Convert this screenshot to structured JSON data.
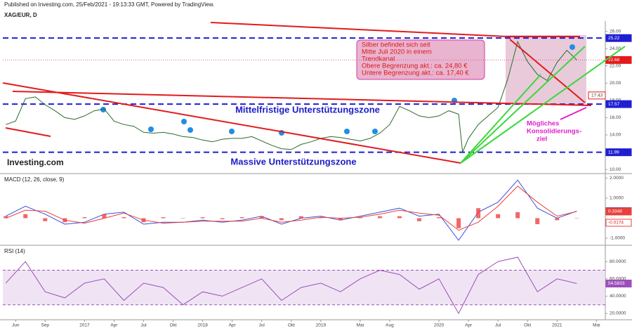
{
  "header": "Published on Investing.com, 25/Feb/2021 - 19:13:33 GMT, Powered by TradingView.",
  "chart_data": [
    {
      "type": "line",
      "title": "XAG/EUR, D",
      "color": "#2b6a2b",
      "x": [
        -1,
        0,
        1,
        2,
        3,
        4,
        5,
        6,
        7,
        8,
        9,
        10,
        11,
        12,
        13,
        14,
        15,
        16,
        17,
        18,
        19,
        20,
        21,
        22,
        23,
        24,
        25,
        26,
        27,
        28,
        29,
        30,
        31,
        32,
        33,
        34,
        35,
        36,
        37,
        38,
        39,
        40,
        41,
        42,
        43,
        44,
        45,
        45.4,
        46,
        47,
        48,
        49,
        50,
        51,
        52,
        53,
        54,
        55,
        56,
        57
      ],
      "values": [
        15.2,
        15.6,
        18.2,
        18.4,
        17.5,
        16.8,
        16.0,
        15.8,
        16.2,
        16.8,
        17.0,
        15.6,
        15.2,
        15.0,
        14.3,
        14.2,
        14.3,
        14.1,
        13.8,
        13.7,
        13.4,
        13.2,
        13.5,
        13.6,
        13.6,
        13.8,
        13.3,
        12.8,
        12.4,
        12.3,
        12.9,
        13.2,
        13.6,
        13.8,
        13.7,
        13.5,
        13.3,
        13.6,
        14.2,
        15.2,
        17.3,
        16.8,
        16.2,
        16.0,
        16.2,
        16.8,
        16.4,
        12.0,
        13.6,
        15.2,
        16.2,
        17.2,
        20.5,
        24.8,
        22.5,
        21.0,
        20.3,
        22.4,
        23.8,
        22.68
      ],
      "xlim": [
        -1.3,
        59.9
      ],
      "ylim": [
        9.6,
        26.7
      ],
      "yticks": [
        {
          "value": 10,
          "label": "10.00"
        },
        {
          "value": 12,
          "label": "12.00"
        },
        {
          "value": 14,
          "label": "14.00"
        },
        {
          "value": 16,
          "label": "16.00"
        },
        {
          "value": 18,
          "label": "18.00"
        },
        {
          "value": 20,
          "label": "20.00"
        },
        {
          "value": 22,
          "label": "22.00"
        },
        {
          "value": 24,
          "label": "24.00"
        },
        {
          "value": 26,
          "label": "26.00"
        }
      ],
      "levels": [
        25.22,
        17.57,
        11.99
      ],
      "level_color": "#1f1fd1",
      "target": 17.43,
      "zones": [
        "Mittelfristige Unterstützungszone",
        "Massive Unterstützungszone"
      ],
      "callout": [
        "Silber befindet sich seit",
        "Mitte Juli 2020 in einem",
        "Trendkanal",
        "Obere Begrenzung akt.: ca. 24,80 €",
        "Untere Begrenzung akt.: ca. 17,40 €"
      ],
      "target_note": [
        "Mögliches",
        "Konsolidierungs-",
        "ziel"
      ],
      "logo": "Investing.com"
    },
    {
      "type": "line",
      "title": "MACD (12, 26, close, 9)",
      "x": [
        -1,
        1,
        3,
        5,
        7,
        9,
        11,
        13,
        15,
        17,
        19,
        21,
        23,
        25,
        27,
        29,
        31,
        33,
        35,
        37,
        39,
        41,
        43,
        45,
        47,
        49,
        51,
        53,
        55,
        57
      ],
      "series": [
        {
          "color": "#3d4fd8",
          "values": [
            0.1,
            0.6,
            0.2,
            -0.3,
            -0.2,
            0.2,
            0.3,
            -0.3,
            -0.2,
            -0.2,
            -0.1,
            -0.2,
            -0.1,
            0.1,
            -0.3,
            0,
            0.1,
            -0.1,
            0.1,
            0.3,
            0.5,
            0.1,
            0.2,
            -1.1,
            0.3,
            0.8,
            1.9,
            0.5,
            0.0,
            0.3522
          ]
        },
        {
          "color": "#e8413c",
          "values": [
            0.0,
            0.4,
            0.35,
            -0.1,
            -0.25,
            0.0,
            0.25,
            -0.1,
            -0.25,
            -0.2,
            -0.15,
            -0.15,
            -0.15,
            0.0,
            -0.2,
            -0.1,
            0.05,
            0.0,
            0.05,
            0.2,
            0.4,
            0.25,
            0.15,
            -0.6,
            -0.2,
            0.6,
            1.6,
            0.8,
            0.1,
            0.3348
          ]
        },
        {
          "type": "bar",
          "color": "#f04040",
          "values": [
            0.1,
            0.2,
            -0.15,
            -0.2,
            0.05,
            0.2,
            0.05,
            -0.2,
            0.05,
            0,
            0.05,
            -0.05,
            0.05,
            0.1,
            -0.1,
            0.1,
            0.05,
            -0.1,
            0.05,
            0.1,
            0.1,
            -0.15,
            0.05,
            -0.5,
            0.5,
            0.2,
            0.3,
            -0.3,
            -0.1,
            -0.0174
          ]
        }
      ],
      "xlim": [
        -1.3,
        59.9
      ],
      "ylim": [
        -1.28,
        2.19
      ],
      "yticks": [
        {
          "value": -1,
          "label": "-1.0000"
        },
        {
          "value": 1,
          "label": "1.0000"
        },
        {
          "value": 2,
          "label": "2.0000"
        }
      ]
    },
    {
      "type": "line",
      "title": "RSI (14)",
      "x": [
        -1,
        1,
        3,
        5,
        7,
        9,
        11,
        13,
        15,
        17,
        19,
        21,
        23,
        25,
        27,
        29,
        31,
        33,
        35,
        37,
        39,
        41,
        43,
        45,
        47,
        49,
        51,
        53,
        55,
        57
      ],
      "series": [
        {
          "color": "#9c4fb8",
          "values": [
            55,
            80,
            45,
            38,
            55,
            60,
            35,
            55,
            50,
            30,
            45,
            40,
            50,
            60,
            35,
            50,
            55,
            45,
            60,
            70,
            65,
            48,
            60,
            20,
            65,
            80,
            85,
            45,
            60,
            54.5833
          ]
        }
      ],
      "band": [
        30,
        70
      ],
      "xlim": [
        -1.3,
        59.9
      ],
      "ylim": [
        12.7,
        98
      ],
      "yticks": [
        {
          "value": 20,
          "label": "20.0000"
        },
        {
          "value": 40,
          "label": "40.0000"
        },
        {
          "value": 60,
          "label": "60.0000"
        },
        {
          "value": 80,
          "label": "80.0000"
        }
      ],
      "xticks": [
        {
          "value": 0,
          "label": "Jun"
        },
        {
          "value": 3,
          "label": "Sep"
        },
        {
          "value": 7,
          "label": "2017"
        },
        {
          "value": 10,
          "label": "Apr"
        },
        {
          "value": 13,
          "label": "Jul"
        },
        {
          "value": 16,
          "label": "Okt"
        },
        {
          "value": 19,
          "label": "2018"
        },
        {
          "value": 22,
          "label": "Apr"
        },
        {
          "value": 25,
          "label": "Jul"
        },
        {
          "value": 28,
          "label": "Okt"
        },
        {
          "value": 31,
          "label": "2019"
        },
        {
          "value": 35,
          "label": "Mai"
        },
        {
          "value": 38,
          "label": "Aug"
        },
        {
          "value": 43,
          "label": "2020"
        },
        {
          "value": 46,
          "label": "Apr"
        },
        {
          "value": 49,
          "label": "Jul"
        },
        {
          "value": 52,
          "label": "Okt"
        },
        {
          "value": 55,
          "label": "2021"
        },
        {
          "value": 59,
          "label": "Mai"
        }
      ]
    }
  ]
}
